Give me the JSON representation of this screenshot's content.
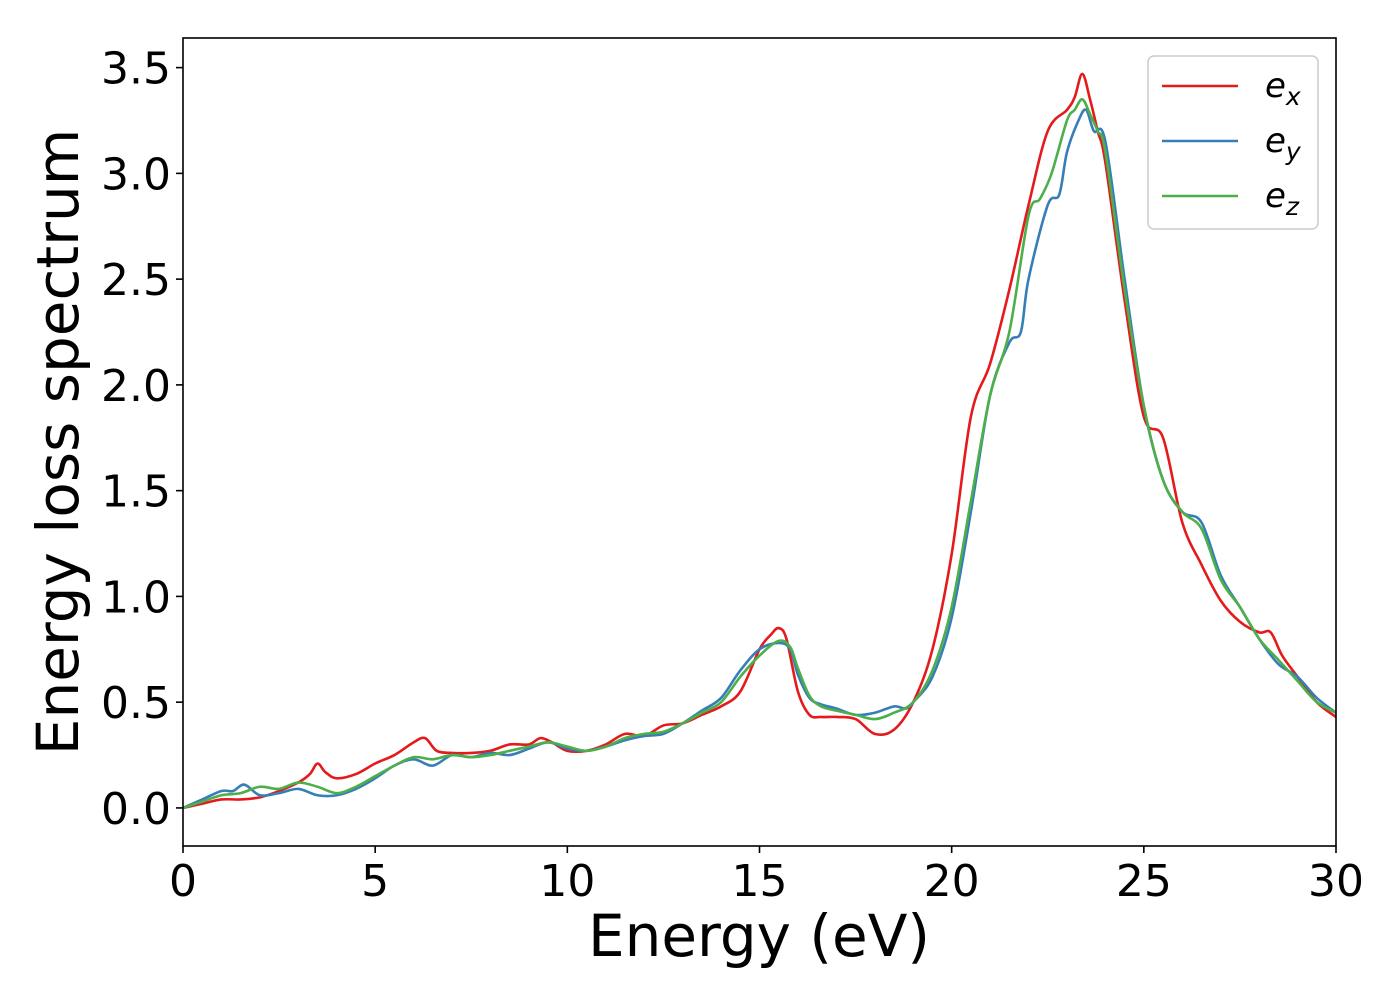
{
  "chart_data": {
    "type": "line",
    "title": "",
    "xlabel": "Energy (eV)",
    "ylabel": "Energy loss spectrum",
    "xlim": [
      0,
      30
    ],
    "ylim": [
      -0.18,
      3.64
    ],
    "xticks": [
      0,
      5,
      10,
      15,
      20,
      25,
      30
    ],
    "yticks": [
      0.0,
      0.5,
      1.0,
      1.5,
      2.0,
      2.5,
      3.0,
      3.5
    ],
    "xtick_labels": [
      "0",
      "5",
      "10",
      "15",
      "20",
      "25",
      "30"
    ],
    "ytick_labels": [
      "0.0",
      "0.5",
      "1.0",
      "1.5",
      "2.0",
      "2.5",
      "3.0",
      "3.5"
    ],
    "grid": false,
    "legend_position": "top-right",
    "series": [
      {
        "name": "e_x",
        "legend_base": "e",
        "legend_sub": "x",
        "color": "#e41a1c",
        "x": [
          0,
          0.5,
          1.0,
          1.5,
          2.0,
          2.5,
          3.0,
          3.3,
          3.5,
          3.7,
          4.0,
          4.5,
          5.0,
          5.5,
          6.0,
          6.3,
          6.6,
          7.0,
          7.5,
          8.0,
          8.5,
          9.0,
          9.3,
          9.6,
          10.0,
          10.5,
          11.0,
          11.5,
          12.0,
          12.5,
          13.0,
          13.5,
          14.0,
          14.5,
          15.0,
          15.3,
          15.5,
          15.7,
          16.0,
          16.3,
          16.6,
          17.0,
          17.5,
          18.0,
          18.5,
          19.0,
          19.5,
          20.0,
          20.5,
          21.0,
          21.5,
          22.0,
          22.5,
          23.0,
          23.2,
          23.4,
          23.6,
          23.8,
          24.0,
          24.5,
          25.0,
          25.5,
          26.0,
          26.5,
          27.0,
          27.5,
          28.0,
          28.3,
          28.6,
          29.0,
          29.5,
          30.0
        ],
        "values": [
          0.0,
          0.02,
          0.04,
          0.04,
          0.05,
          0.08,
          0.12,
          0.16,
          0.21,
          0.17,
          0.14,
          0.16,
          0.21,
          0.25,
          0.31,
          0.33,
          0.27,
          0.26,
          0.26,
          0.27,
          0.3,
          0.3,
          0.33,
          0.31,
          0.27,
          0.27,
          0.3,
          0.35,
          0.34,
          0.39,
          0.4,
          0.44,
          0.48,
          0.55,
          0.75,
          0.82,
          0.85,
          0.8,
          0.55,
          0.44,
          0.43,
          0.43,
          0.42,
          0.35,
          0.37,
          0.5,
          0.75,
          1.2,
          1.85,
          2.1,
          2.45,
          2.85,
          3.2,
          3.3,
          3.36,
          3.47,
          3.35,
          3.2,
          3.05,
          2.4,
          1.85,
          1.75,
          1.35,
          1.15,
          0.98,
          0.88,
          0.83,
          0.83,
          0.72,
          0.62,
          0.5,
          0.43
        ]
      },
      {
        "name": "e_y",
        "legend_base": "e",
        "legend_sub": "y",
        "color": "#377eb8",
        "x": [
          0,
          0.5,
          1.0,
          1.3,
          1.6,
          2.0,
          2.5,
          3.0,
          3.5,
          4.0,
          4.5,
          5.0,
          5.5,
          6.0,
          6.5,
          7.0,
          7.5,
          8.0,
          8.5,
          9.0,
          9.5,
          10.0,
          10.5,
          11.0,
          11.5,
          12.0,
          12.5,
          13.0,
          13.5,
          14.0,
          14.5,
          15.0,
          15.5,
          15.8,
          16.0,
          16.3,
          16.6,
          17.0,
          17.5,
          18.0,
          18.5,
          18.8,
          19.0,
          19.5,
          20.0,
          20.5,
          21.0,
          21.5,
          21.8,
          22.0,
          22.5,
          22.8,
          23.0,
          23.3,
          23.5,
          23.7,
          24.0,
          24.5,
          25.0,
          25.5,
          26.0,
          26.5,
          27.0,
          27.5,
          28.0,
          28.5,
          29.0,
          29.5,
          30.0
        ],
        "values": [
          0.0,
          0.04,
          0.08,
          0.08,
          0.11,
          0.06,
          0.07,
          0.09,
          0.06,
          0.06,
          0.09,
          0.14,
          0.2,
          0.23,
          0.2,
          0.25,
          0.24,
          0.26,
          0.25,
          0.28,
          0.31,
          0.28,
          0.27,
          0.29,
          0.32,
          0.34,
          0.35,
          0.4,
          0.46,
          0.52,
          0.65,
          0.75,
          0.78,
          0.75,
          0.63,
          0.52,
          0.49,
          0.47,
          0.44,
          0.45,
          0.48,
          0.47,
          0.5,
          0.62,
          0.9,
          1.4,
          1.95,
          2.2,
          2.25,
          2.5,
          2.85,
          2.9,
          3.1,
          3.25,
          3.3,
          3.2,
          3.15,
          2.5,
          1.9,
          1.55,
          1.4,
          1.35,
          1.1,
          0.95,
          0.8,
          0.68,
          0.62,
          0.52,
          0.45
        ]
      },
      {
        "name": "e_z",
        "legend_base": "e",
        "legend_sub": "z",
        "color": "#4daf4a",
        "x": [
          0,
          0.5,
          1.0,
          1.5,
          2.0,
          2.5,
          3.0,
          3.5,
          4.0,
          4.5,
          5.0,
          5.5,
          6.0,
          6.5,
          7.0,
          7.5,
          8.0,
          8.5,
          9.0,
          9.5,
          10.0,
          10.5,
          11.0,
          11.5,
          12.0,
          12.5,
          13.0,
          13.5,
          14.0,
          14.5,
          15.0,
          15.5,
          15.8,
          16.0,
          16.3,
          16.6,
          17.0,
          17.5,
          18.0,
          18.5,
          19.0,
          19.5,
          20.0,
          20.5,
          21.0,
          21.5,
          22.0,
          22.3,
          22.6,
          23.0,
          23.2,
          23.4,
          23.6,
          23.8,
          24.0,
          24.5,
          25.0,
          25.5,
          26.0,
          26.5,
          27.0,
          27.5,
          28.0,
          28.5,
          29.0,
          29.5,
          30.0
        ],
        "values": [
          0.0,
          0.03,
          0.06,
          0.07,
          0.1,
          0.09,
          0.12,
          0.1,
          0.07,
          0.1,
          0.15,
          0.2,
          0.24,
          0.23,
          0.25,
          0.24,
          0.25,
          0.27,
          0.29,
          0.31,
          0.29,
          0.27,
          0.29,
          0.33,
          0.35,
          0.36,
          0.4,
          0.45,
          0.5,
          0.62,
          0.72,
          0.79,
          0.76,
          0.66,
          0.53,
          0.48,
          0.46,
          0.44,
          0.42,
          0.45,
          0.5,
          0.65,
          0.95,
          1.45,
          1.95,
          2.25,
          2.8,
          2.88,
          3.0,
          3.25,
          3.3,
          3.35,
          3.28,
          3.2,
          3.1,
          2.45,
          1.9,
          1.55,
          1.4,
          1.32,
          1.08,
          0.95,
          0.8,
          0.7,
          0.6,
          0.5,
          0.45
        ]
      }
    ]
  }
}
